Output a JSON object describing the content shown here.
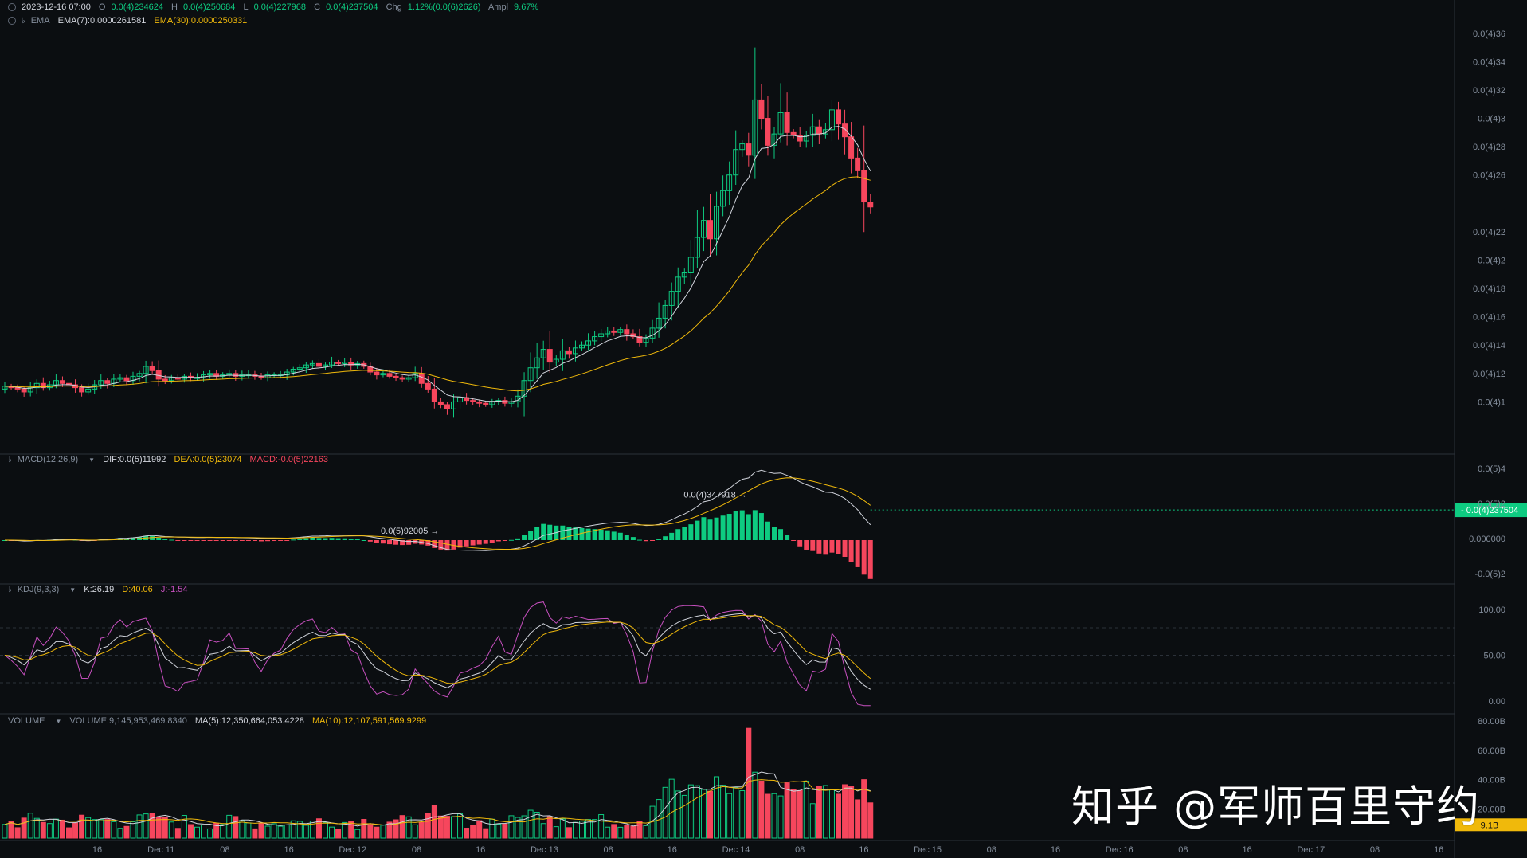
{
  "header": {
    "date": "2023-12-16 07:00",
    "open_label": "O",
    "open": "0.0(4)234624",
    "high_label": "H",
    "high": "0.0(4)250684",
    "low_label": "L",
    "low": "0.0(4)227968",
    "close_label": "C",
    "close": "0.0(4)237504",
    "chg_label": "Chg",
    "chg": "1.12%(0.0(6)2626)",
    "ampl_label": "Ampl",
    "ampl": "9.67%"
  },
  "ema": {
    "label": "EMA",
    "ema7": "EMA(7):0.0000261581",
    "ema30": "EMA(30):0.0000250331"
  },
  "macd": {
    "label": "MACD(12,26,9)",
    "dif": "DIF:0.0(5)11992",
    "dea": "DEA:0.0(5)23074",
    "macd": "MACD:-0.0(5)22163"
  },
  "kdj": {
    "label": "KDJ(9,3,3)",
    "k": "K:26.19",
    "d": "D:40.06",
    "j": "J:-1.54"
  },
  "volume": {
    "label": "VOLUME",
    "vol": "VOLUME:9,145,953,469.8340",
    "ma5": "MA(5):12,350,664,053.4228",
    "ma10": "MA(10):12,107,591,569.9299"
  },
  "watermark": "知乎 @军师百里守约",
  "colors": {
    "up": "#0ecb81",
    "down": "#f6465d",
    "ema7": "#d1d4dc",
    "ema30": "#f0b90b",
    "kdj_j": "#c850c0",
    "vol_badge": "#f0b90b"
  },
  "chart_data": {
    "type": "candlestick",
    "price_axis": {
      "ticks": [
        "0.0(4)36",
        "0.0(4)34",
        "0.0(4)32",
        "0.0(4)3",
        "0.0(4)28",
        "0.0(4)26",
        "0.0(4)22",
        "0.0(4)2",
        "0.0(4)18",
        "0.0(4)16",
        "0.0(4)14",
        "0.0(4)12",
        "0.0(4)1"
      ],
      "min": 8e-06,
      "max": 3.7e-05
    },
    "current_price_label": "0.0(4)237504",
    "current_price": 2.37504e-05,
    "max_annotation": "0.0(4)347918",
    "max_value": 3.47918e-05,
    "min_annotation": "0.0(5)92005",
    "min_value": 9.2005e-06,
    "x_axis_labels": [
      "16",
      "Dec 11",
      "08",
      "16",
      "Dec 12",
      "08",
      "16",
      "Dec 13",
      "08",
      "16",
      "Dec 14",
      "08",
      "16",
      "Dec 15",
      "08",
      "16",
      "Dec 16",
      "08",
      "16",
      "Dec 17",
      "08",
      "16"
    ],
    "macd_axis_ticks": [
      "0.0(5)4",
      "0.0(5)2",
      "0.000000",
      "-0.0(5)2"
    ],
    "kdj_axis_ticks": [
      "100.00",
      "50.00",
      "0.00"
    ],
    "volume_axis_ticks": [
      "80.00B",
      "60.00B",
      "40.00B",
      "20.00B"
    ],
    "volume_current_label": "9.1B",
    "close_series": [
      11.1,
      11.0,
      10.9,
      10.7,
      11.0,
      11.3,
      11.0,
      11.2,
      11.5,
      11.3,
      11.2,
      11.0,
      10.7,
      10.9,
      11.2,
      11.5,
      11.3,
      11.6,
      11.7,
      11.5,
      11.8,
      12.0,
      12.5,
      12.2,
      11.6,
      11.5,
      11.7,
      11.6,
      11.8,
      11.7,
      11.7,
      11.9,
      12.0,
      11.8,
      11.9,
      12.0,
      11.8,
      11.9,
      11.9,
      11.8,
      11.7,
      11.9,
      11.9,
      11.9,
      12.1,
      12.3,
      12.4,
      12.6,
      12.7,
      12.5,
      12.6,
      12.8,
      12.7,
      12.8,
      12.6,
      12.7,
      12.5,
      12.1,
      11.9,
      12.0,
      11.8,
      11.7,
      11.6,
      11.7,
      12.0,
      11.3,
      10.9,
      10.0,
      9.8,
      9.5,
      10.0,
      10.3,
      10.1,
      10.0,
      9.9,
      9.8,
      10.0,
      10.1,
      9.9,
      10.0,
      10.4,
      11.5,
      12.4,
      13.1,
      13.7,
      12.8,
      13.0,
      13.6,
      13.4,
      13.8,
      14.0,
      14.3,
      14.6,
      14.8,
      15.0,
      14.9,
      15.1,
      14.8,
      14.6,
      14.2,
      14.5,
      15.2,
      15.9,
      16.8,
      17.8,
      18.8,
      19.1,
      20.2,
      21.6,
      22.8,
      21.5,
      23.8,
      24.9,
      26.0,
      27.8,
      28.2,
      27.4,
      31.3,
      30.0,
      28.1,
      28.9,
      30.4,
      29.0,
      28.8,
      28.4,
      28.8,
      29.4,
      28.9,
      29.2,
      30.6,
      29.6,
      28.7,
      27.2,
      26.3,
      24.1,
      23.75
    ],
    "ema7_points": "derived from close_series",
    "ema30_points": "derived from close_series"
  }
}
